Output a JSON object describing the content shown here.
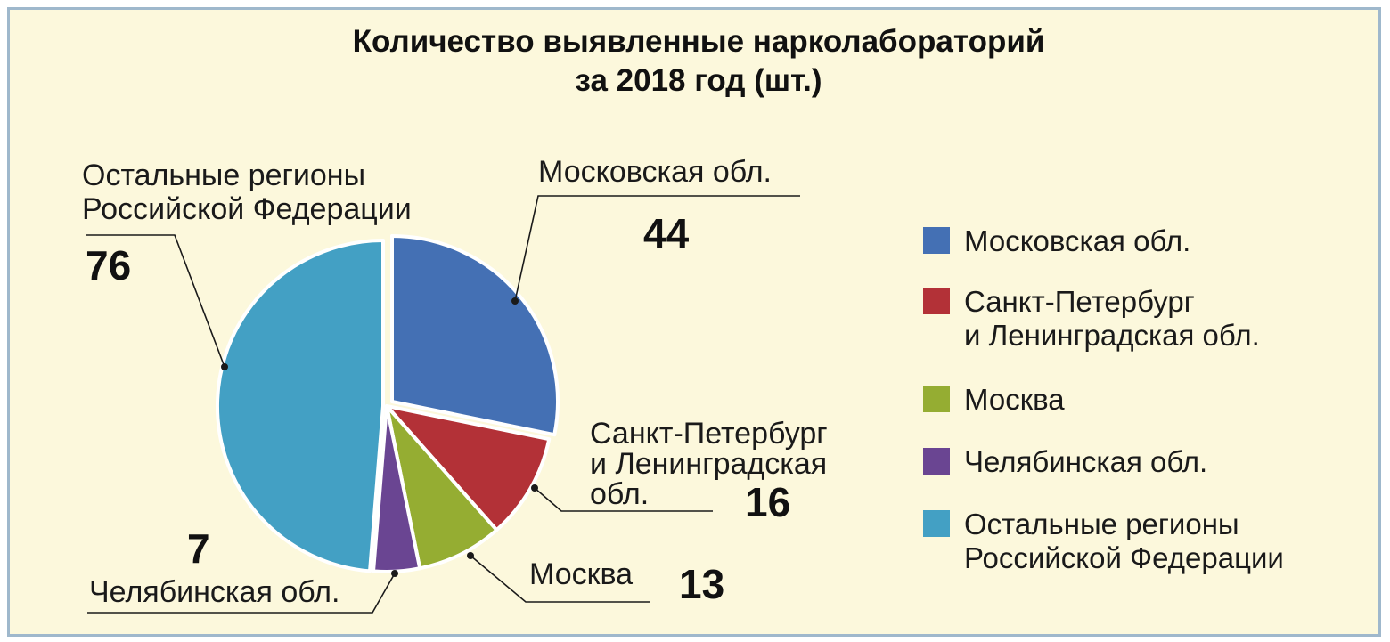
{
  "chart_data": {
    "type": "pie",
    "title": [
      "Количество выявленные нарколабораторий",
      "за 2018 год (шт.)"
    ],
    "slices": [
      {
        "label": [
          "Московская обл."
        ],
        "legend": [
          "Московская обл."
        ],
        "value": 44,
        "value_text": "44",
        "color": "#4470b4"
      },
      {
        "label": [
          "Санкт-Петербург",
          "и Ленинградская",
          "обл."
        ],
        "legend": [
          "Санкт-Петербург",
          "и Ленинградская обл."
        ],
        "value": 16,
        "value_text": "16",
        "color": "#b33137"
      },
      {
        "label": [
          "Москва"
        ],
        "legend": [
          "Москва"
        ],
        "value": 13,
        "value_text": "13",
        "color": "#95ad32"
      },
      {
        "label": [
          "Челябинская обл."
        ],
        "legend": [
          "Челябинская обл."
        ],
        "value": 7,
        "value_text": "7",
        "color": "#6a4592"
      },
      {
        "label": [
          "Остальные регионы",
          "Российской Федерации"
        ],
        "legend": [
          "Остальные регионы",
          "Российской Федерации"
        ],
        "value": 76,
        "value_text": "76",
        "color": "#43a0c4"
      }
    ],
    "legend_position": "right"
  }
}
